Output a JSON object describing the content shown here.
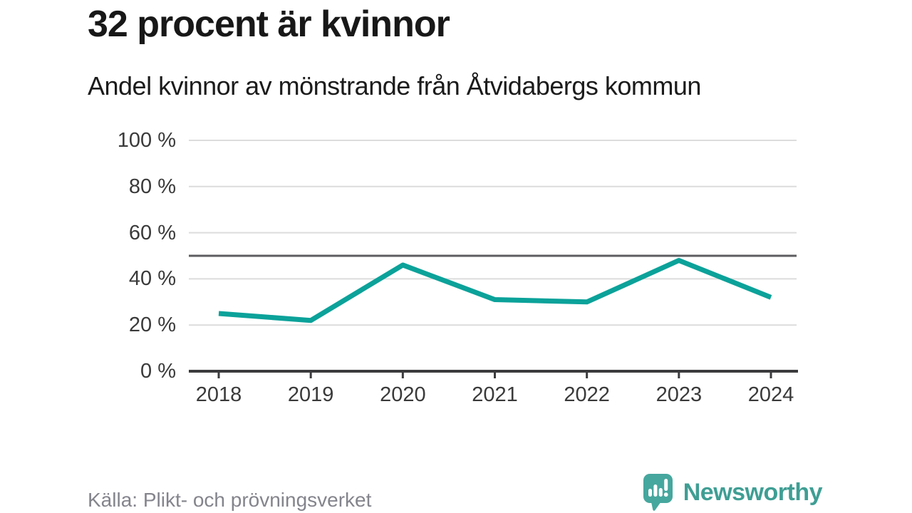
{
  "header": {
    "title": "32 procent är kvinnor",
    "subtitle": "Andel kvinnor av mönstrande från Åtvidabergs kommun"
  },
  "chart_data": {
    "type": "line",
    "x": [
      "2018",
      "2019",
      "2020",
      "2021",
      "2022",
      "2023",
      "2024"
    ],
    "series": [
      {
        "name": "Andel kvinnor av mönstrande",
        "values": [
          25,
          22,
          46,
          31,
          30,
          48,
          32
        ]
      }
    ],
    "unit": "%",
    "ylim": [
      0,
      100
    ],
    "yticks": [
      0,
      20,
      40,
      60,
      80,
      100
    ],
    "ytick_suffix": " %",
    "grid": "horizontal",
    "legend": "none",
    "reference_line": {
      "value": 50
    },
    "colors": {
      "line": "#0ba29a",
      "reference": "#5d5d60",
      "grid": "#dcdcdc",
      "axis": "#3b3b3d",
      "tick_label": "#3a3a3a"
    }
  },
  "footer": {
    "source": "Källa: Plikt- och prövningsverket",
    "brand": "Newsworthy",
    "brand_color": "#3f9e94",
    "logo_bubble_color": "#46a79e"
  }
}
